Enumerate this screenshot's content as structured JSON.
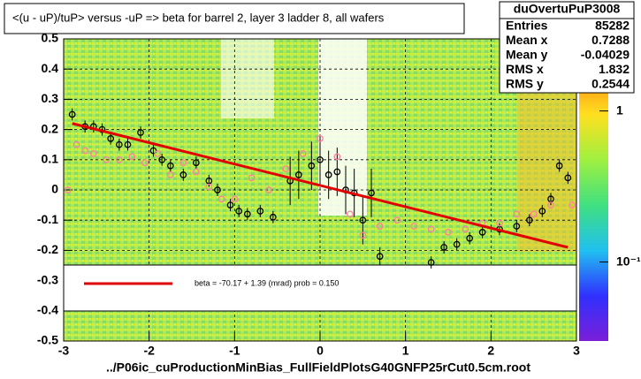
{
  "chart_data": {
    "type": "scatter",
    "title": "<(u - uP)/tuP> versus  -uP => beta for barrel 2, layer 3 ladder 8, all wafers",
    "xlabel": "../P06ic_cuProductionMinBias_FullFieldPlotsG40GNFP25rCut0.5cm.root",
    "xlim": [
      -3,
      3
    ],
    "xticks": [
      -3,
      -2,
      -1,
      0,
      1,
      2,
      3
    ],
    "ylim": [
      -0.5,
      0.5
    ],
    "yticks": [
      -0.5,
      -0.4,
      -0.3,
      -0.2,
      -0.1,
      0,
      0.1,
      0.2,
      0.3,
      0.4,
      0.5
    ],
    "grid": true,
    "zlim": [
      0.03,
      3
    ],
    "zlog": true,
    "zticks": [
      1,
      {
        "value": 0.1,
        "label": "10⁻¹"
      }
    ],
    "stats": {
      "title": "duOvertuPuP3008",
      "rows": [
        [
          "Entries",
          85282
        ],
        [
          "Mean x",
          0.7288
        ],
        [
          "Mean y",
          -0.04029
        ],
        [
          "RMS x",
          1.832
        ],
        [
          "RMS y",
          0.2544
        ]
      ]
    },
    "legend": {
      "text": "beta =  -70.17 +   1.39 (mrad) prob = 0.150",
      "color": "#e00000"
    },
    "series": [
      {
        "style": "errorbar",
        "color": "#000000",
        "x": [
          -2.9,
          -2.75,
          -2.65,
          -2.55,
          -2.45,
          -2.35,
          -2.25,
          -2.1,
          -1.95,
          -1.85,
          -1.75,
          -1.6,
          -1.45,
          -1.3,
          -1.2,
          -1.05,
          -0.95,
          -0.85,
          -0.7,
          -0.55,
          -0.35,
          -0.25,
          -0.1,
          0.0,
          0.1,
          0.2,
          0.3,
          0.4,
          0.5,
          0.6,
          0.7,
          1.3,
          1.45,
          1.6,
          1.75,
          1.9,
          2.1,
          2.3,
          2.45,
          2.6,
          2.7,
          2.8,
          2.9
        ],
        "values": [
          0.25,
          0.21,
          0.21,
          0.2,
          0.17,
          0.15,
          0.15,
          0.19,
          0.13,
          0.1,
          0.08,
          0.05,
          0.09,
          0.03,
          0.0,
          -0.05,
          -0.07,
          -0.08,
          -0.07,
          -0.09,
          0.03,
          0.05,
          0.08,
          0.1,
          0.05,
          0.06,
          0.0,
          -0.01,
          -0.1,
          -0.01,
          -0.22,
          -0.24,
          -0.19,
          -0.18,
          -0.16,
          -0.14,
          -0.13,
          -0.12,
          -0.1,
          -0.07,
          -0.03,
          0.08,
          0.04
        ],
        "errors": [
          0.02,
          0.02,
          0.02,
          0.02,
          0.02,
          0.02,
          0.02,
          0.02,
          0.02,
          0.02,
          0.02,
          0.02,
          0.02,
          0.02,
          0.02,
          0.02,
          0.02,
          0.02,
          0.02,
          0.02,
          0.08,
          0.08,
          0.08,
          0.08,
          0.08,
          0.08,
          0.08,
          0.08,
          0.08,
          0.08,
          0.03,
          0.02,
          0.02,
          0.02,
          0.02,
          0.02,
          0.02,
          0.02,
          0.02,
          0.02,
          0.02,
          0.02,
          0.02
        ]
      },
      {
        "style": "points",
        "color": "#ff7fa0",
        "x": [
          -2.95,
          -2.85,
          -2.75,
          -2.65,
          -2.5,
          -2.35,
          -2.2,
          -2.05,
          -1.9,
          -1.75,
          -1.6,
          -1.45,
          -1.3,
          -1.15,
          -1.0,
          -0.8,
          -0.6,
          -0.4,
          -0.2,
          0.0,
          0.2,
          0.35,
          0.5,
          0.7,
          0.9,
          1.1,
          1.3,
          1.5,
          1.7,
          1.9,
          2.1,
          2.3,
          2.5,
          2.7,
          2.95
        ],
        "values": [
          0.0,
          0.15,
          0.13,
          0.12,
          0.1,
          0.1,
          0.11,
          0.09,
          0.12,
          0.05,
          0.09,
          0.06,
          0.01,
          -0.03,
          -0.03,
          0.04,
          0.0,
          0.07,
          0.12,
          0.17,
          0.11,
          -0.08,
          -0.15,
          -0.12,
          -0.1,
          -0.12,
          -0.13,
          -0.14,
          -0.13,
          -0.11,
          -0.11,
          -0.08,
          -0.08,
          -0.05,
          -0.05
        ]
      },
      {
        "style": "line",
        "color": "#e00000",
        "x": [
          -2.9,
          2.9
        ],
        "values": [
          0.22,
          -0.19
        ]
      }
    ]
  }
}
